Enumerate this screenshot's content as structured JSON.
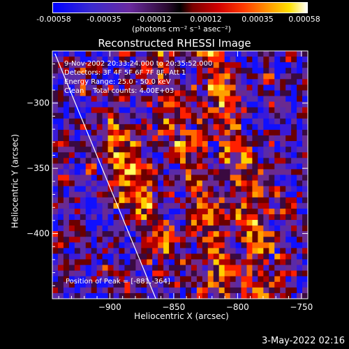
{
  "colorbar": {
    "ticks": [
      "-0.00058",
      "-0.00035",
      "-0.00012",
      "0.00012",
      "0.00035",
      "0.00058"
    ],
    "unit_label": "(photons cm⁻² s⁻¹ asec⁻²)"
  },
  "title": "Reconstructed RHESSI Image",
  "annotations": {
    "time_range": "9-Nov-2002 20:33:24.000 to 20:35:52.000",
    "detectors": "Detectors: 3F 4F 5F 6F 7F 8F, Att 1",
    "energy": "Energy Range: 25.0 - 50.0 keV",
    "algorithm": "Clean    Total counts: 4.00E+03",
    "peak": "Position of Peak = [-881,-364]"
  },
  "footer_date": "3-May-2022 02:16",
  "chart_data": {
    "type": "heatmap",
    "title": "Reconstructed RHESSI Image",
    "xlabel": "Heliocentric X (arcsec)",
    "ylabel": "Heliocentric Y (arcsec)",
    "xlim": [
      -945,
      -745
    ],
    "ylim": [
      -450,
      -260
    ],
    "xticks": [
      -900,
      -850,
      -800,
      -750
    ],
    "yticks": [
      -300,
      -350,
      -400
    ],
    "color_range": [
      -0.00058,
      0.00058
    ],
    "colormap": [
      "#0000ff",
      "#3a1aa8",
      "#5a2a9a",
      "#000000",
      "#b00000",
      "#ff3000",
      "#ff9a00",
      "#ffe000",
      "#ffffff"
    ],
    "peak_position": [
      -881,
      -364
    ],
    "limb_line": [
      [
        -943,
        -262
      ],
      [
        -864,
        -450
      ]
    ]
  }
}
